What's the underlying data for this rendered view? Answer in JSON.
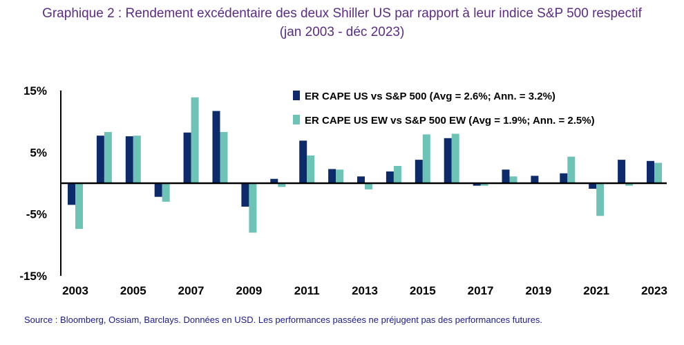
{
  "title_line1": "Graphique 2 : Rendement excédentaire des deux Shiller US par rapport à leur indice S&P 500 respectif",
  "title_line2": "(jan 2003 - déc 2023)",
  "source": "Source : Bloomberg, Ossiam, Barclays. Données en USD. Les performances passées ne préjugent pas des performances futures.",
  "chart_data": {
    "type": "bar",
    "categories": [
      "2003",
      "2004",
      "2005",
      "2006",
      "2007",
      "2008",
      "2009",
      "2010",
      "2011",
      "2012",
      "2013",
      "2014",
      "2015",
      "2016",
      "2017",
      "2018",
      "2019",
      "2020",
      "2021",
      "2022",
      "2023"
    ],
    "x_tick_labels": [
      "2003",
      "",
      "2005",
      "",
      "2007",
      "",
      "2009",
      "",
      "2011",
      "",
      "2013",
      "",
      "2015",
      "",
      "2017",
      "",
      "2019",
      "",
      "2021",
      "",
      "2023"
    ],
    "series": [
      {
        "name": "ER CAPE US vs S&P 500 (Avg = 2.6%; Ann. = 3.2%)",
        "color": "#0d2a6b",
        "values": [
          -3.5,
          7.7,
          7.6,
          -2.2,
          8.2,
          11.7,
          -3.8,
          0.7,
          6.9,
          2.3,
          1.1,
          1.9,
          3.8,
          7.3,
          -0.4,
          2.2,
          1.2,
          1.6,
          -0.9,
          3.8,
          3.6
        ]
      },
      {
        "name": "ER CAPE US EW vs S&P 500 EW (Avg = 1.9%; Ann. = 2.5%)",
        "color": "#6cc3b6",
        "values": [
          -7.4,
          8.3,
          7.7,
          -3.0,
          13.9,
          8.3,
          -8.0,
          -0.6,
          4.5,
          2.2,
          -1.0,
          2.8,
          7.9,
          8.0,
          -0.4,
          1.1,
          0.1,
          4.3,
          -5.3,
          -0.4,
          3.3
        ]
      }
    ],
    "y_ticks": [
      15,
      5,
      -5,
      -15
    ],
    "y_tick_labels": [
      "15%",
      "5%",
      "-5%",
      "-15%"
    ],
    "ylim": [
      -15,
      15
    ],
    "legend_position": "top-right"
  }
}
